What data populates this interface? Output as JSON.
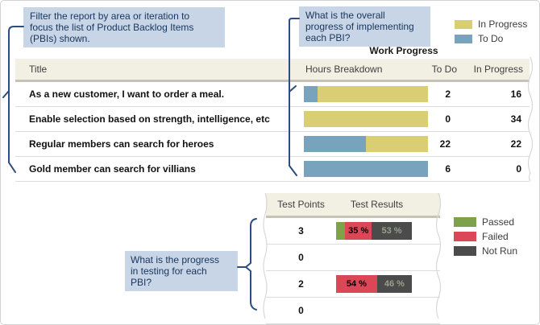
{
  "colors": {
    "in_progress": "#d9ce74",
    "to_do": "#78a3bd",
    "passed": "#7ea14c",
    "failed": "#dc4757",
    "not_run": "#4b4b4b",
    "callout_bg": "#c8d5e6",
    "callout_text": "#17365d",
    "connector": "#2c4d80"
  },
  "callouts": {
    "filter": {
      "lines": [
        "Filter the report by area or iteration to",
        "focus the list of Product Backlog Items",
        "(PBIs) shown."
      ]
    },
    "progress": {
      "lines": [
        "What is the overall",
        "progress of implementing",
        "each PBI?"
      ]
    },
    "testing": {
      "lines": [
        "What is the progress",
        "in testing for each",
        "PBI?"
      ]
    }
  },
  "legend_top": {
    "items": [
      {
        "key": "in_progress",
        "label": "In Progress"
      },
      {
        "key": "to_do",
        "label": "To Do"
      }
    ]
  },
  "legend_bottom": {
    "items": [
      {
        "key": "passed",
        "label": "Passed"
      },
      {
        "key": "failed",
        "label": "Failed"
      },
      {
        "key": "not_run",
        "label": "Not Run"
      }
    ]
  },
  "work_table": {
    "group_header": "Work Progress",
    "columns": [
      "Title",
      "Hours Breakdown",
      "To Do",
      "In Progress"
    ],
    "rows": [
      {
        "title": "As a new customer, I want to order a meal.",
        "to_do": 2,
        "in_progress": 16
      },
      {
        "title": "Enable selection based on strength, intelligence, etc",
        "to_do": 0,
        "in_progress": 34
      },
      {
        "title": "Regular members can search for heroes",
        "to_do": 22,
        "in_progress": 22
      },
      {
        "title": "Gold member can search for villians",
        "to_do": 6,
        "in_progress": 0
      }
    ]
  },
  "test_table": {
    "columns": [
      "Test Points",
      "Test Results"
    ],
    "rows": [
      {
        "points": 3,
        "segments": [
          {
            "key": "passed",
            "pct": 12,
            "label": ""
          },
          {
            "key": "failed",
            "pct": 35,
            "label": "35 %"
          },
          {
            "key": "not_run",
            "pct": 53,
            "label": "53 %"
          }
        ]
      },
      {
        "points": 0,
        "segments": []
      },
      {
        "points": 2,
        "segments": [
          {
            "key": "failed",
            "pct": 54,
            "label": "54 %"
          },
          {
            "key": "not_run",
            "pct": 46,
            "label": "46 %"
          }
        ]
      },
      {
        "points": 0,
        "segments": []
      }
    ]
  }
}
